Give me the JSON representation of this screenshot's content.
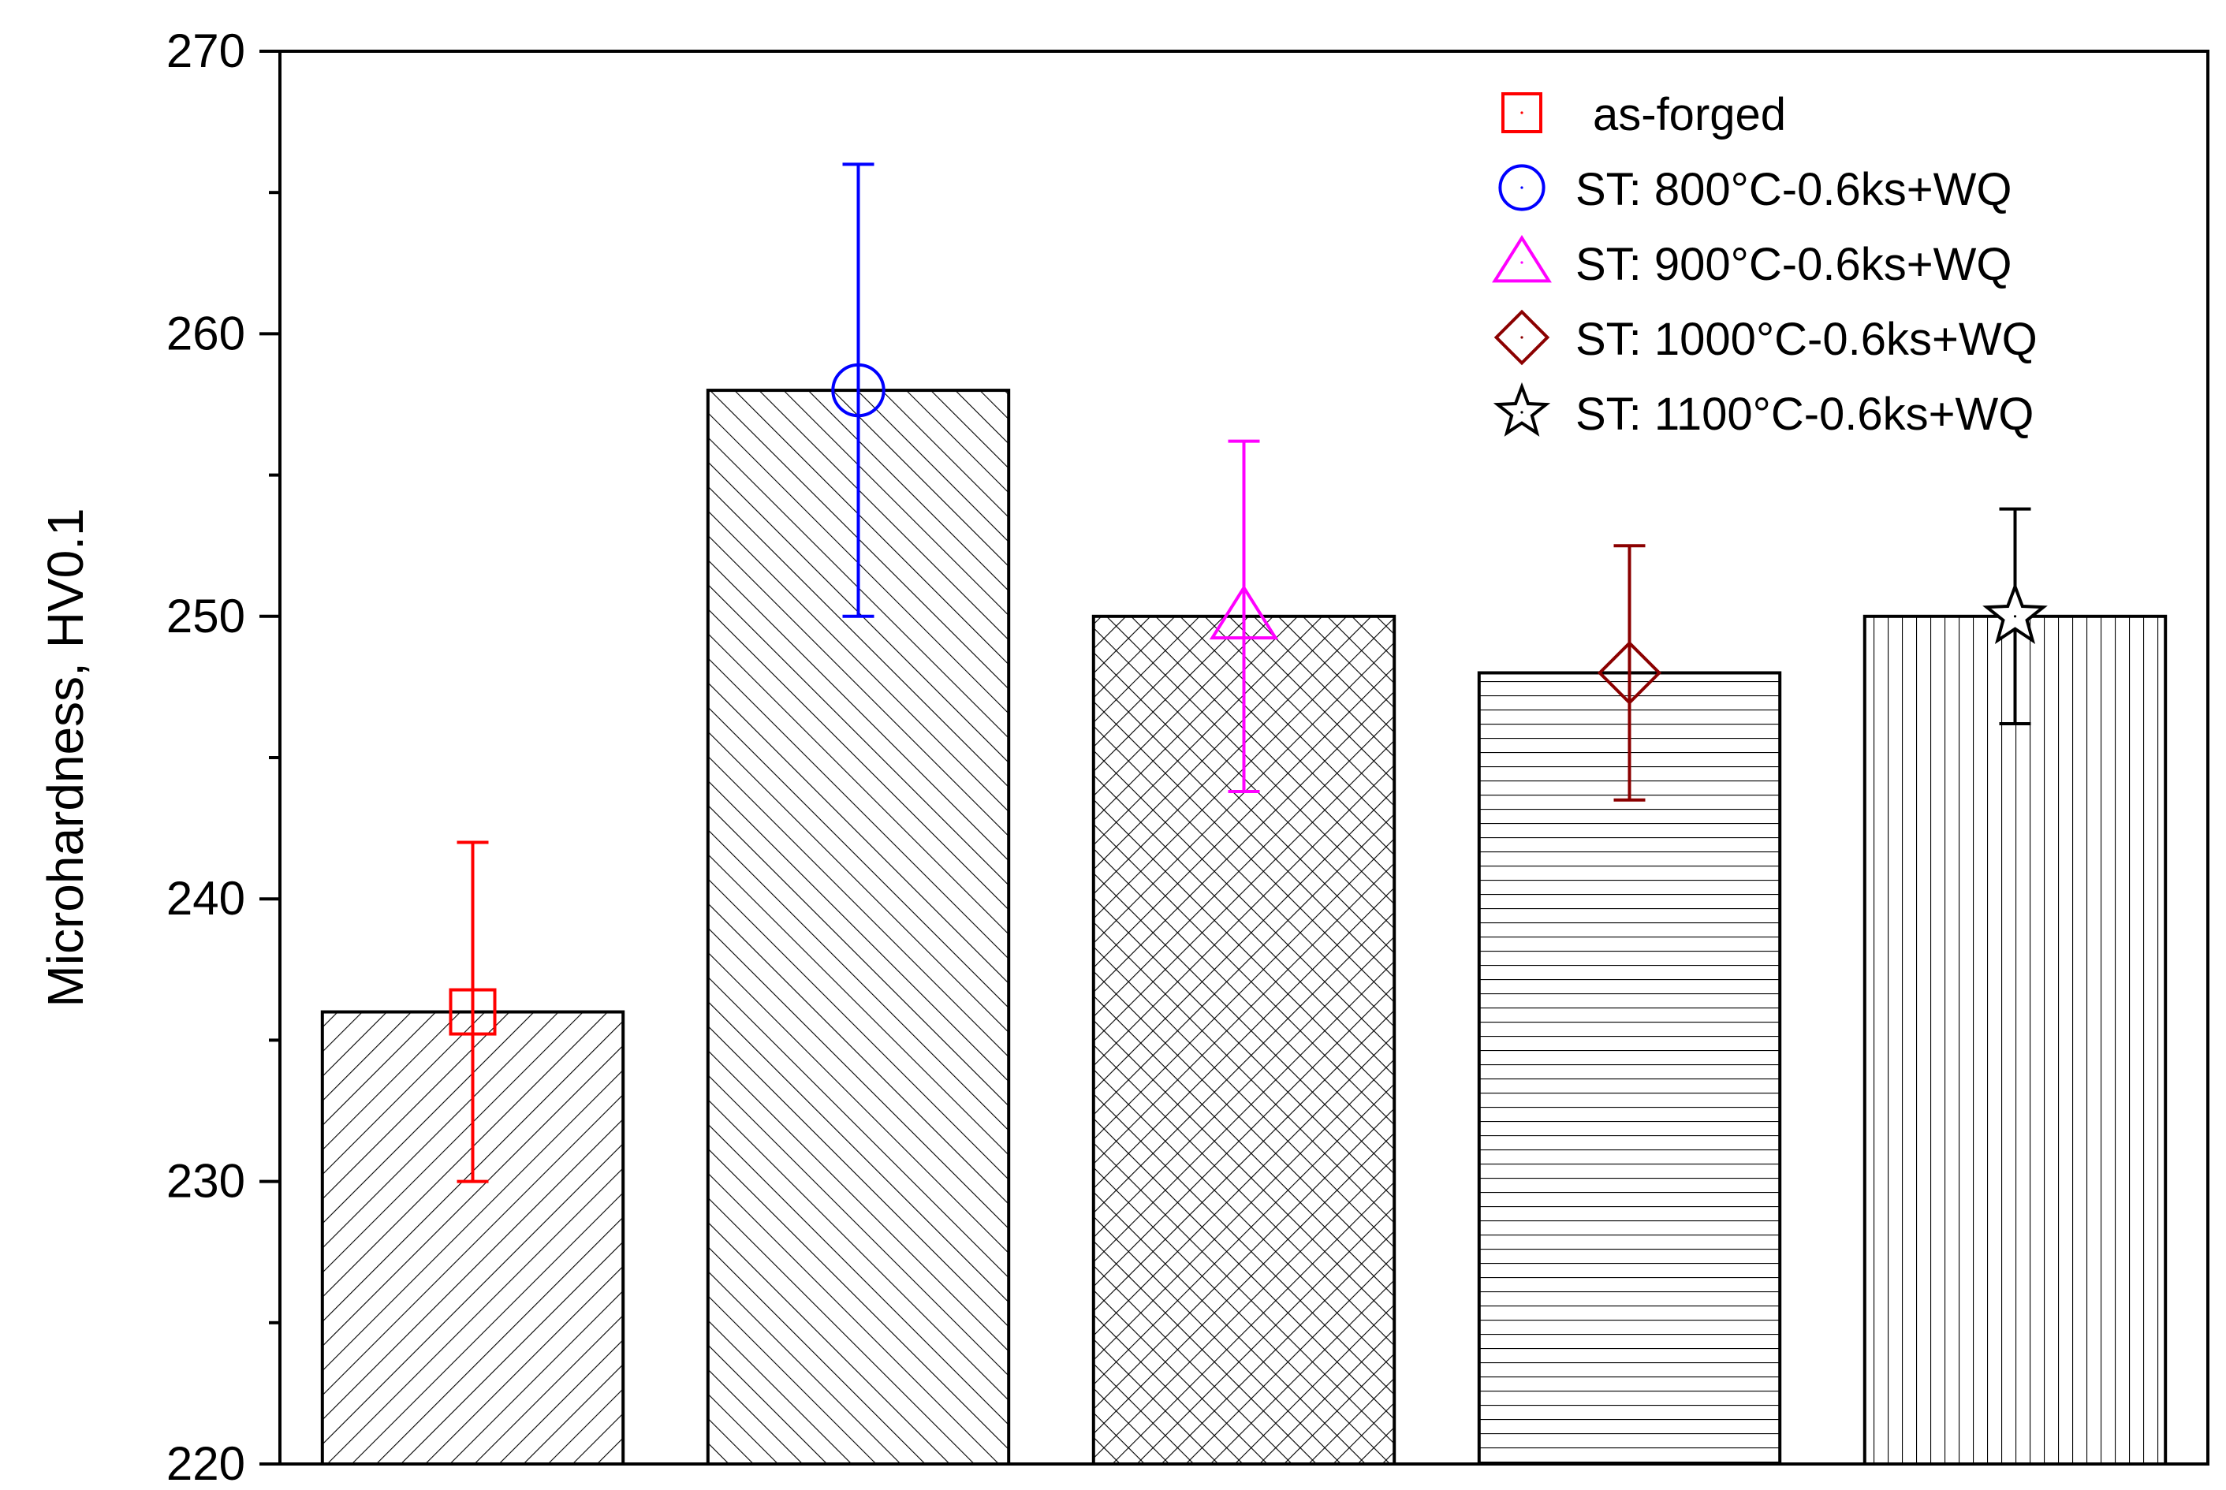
{
  "chart_data": {
    "type": "bar",
    "ylabel": "Microhardness, HV0.1",
    "ylim": [
      220,
      270
    ],
    "yticks": [
      220,
      230,
      240,
      250,
      260,
      270
    ],
    "series": [
      {
        "name": "as-forged",
        "value": 236,
        "err_low": 230,
        "err_high": 242,
        "marker": "square",
        "color": "#ff0000",
        "hatch": "diag-right"
      },
      {
        "name": "ST: 800°C-0.6ks+WQ",
        "value": 258,
        "err_low": 250,
        "err_high": 266,
        "marker": "circle",
        "color": "#0000ff",
        "hatch": "diag-left"
      },
      {
        "name": "ST: 900°C-0.6ks+WQ",
        "value": 250,
        "err_low": 243.8,
        "err_high": 256.2,
        "marker": "triangle",
        "color": "#ff00ff",
        "hatch": "cross"
      },
      {
        "name": "ST: 1000°C-0.6ks+WQ",
        "value": 248,
        "err_low": 243.5,
        "err_high": 252.5,
        "marker": "diamond",
        "color": "#8b0000",
        "hatch": "horizontal"
      },
      {
        "name": "ST: 1100°C-0.6ks+WQ",
        "value": 250,
        "err_low": 246.2,
        "err_high": 253.8,
        "marker": "star",
        "color": "#000000",
        "hatch": "vertical"
      }
    ],
    "legend_position": "top-right",
    "grid": false
  }
}
